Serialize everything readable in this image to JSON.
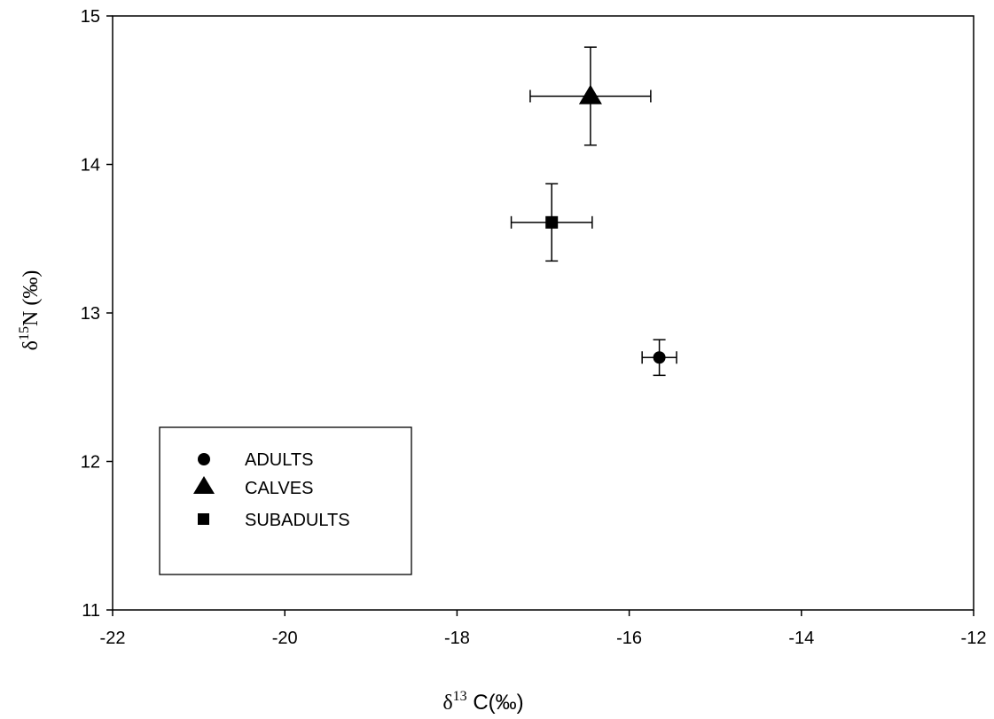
{
  "chart_data": {
    "type": "scatter",
    "xlabel": {
      "symbol": "δ",
      "sup": "13",
      "text": " C(‰)"
    },
    "ylabel": {
      "symbol": "δ",
      "sup": "15",
      "text": "N (‰)"
    },
    "xlim": [
      -22,
      -12
    ],
    "ylim": [
      11,
      15
    ],
    "xticks": [
      -22,
      -20,
      -18,
      -16,
      -14,
      -12
    ],
    "yticks": [
      11,
      12,
      13,
      14,
      15
    ],
    "grid": false,
    "legend_position": "bottom-left",
    "series": [
      {
        "name": "ADULTS",
        "marker": "circle",
        "x": -15.65,
        "y": 12.7,
        "x_err": 0.2,
        "y_err": 0.12
      },
      {
        "name": "CALVES",
        "marker": "triangle",
        "x": -16.45,
        "y": 14.46,
        "x_err": 0.7,
        "y_err": 0.33
      },
      {
        "name": "SUBADULTS",
        "marker": "square",
        "x": -16.9,
        "y": 13.61,
        "x_err": 0.47,
        "y_err": 0.26
      }
    ],
    "colors": {
      "marker": "#000000",
      "axis": "#000000"
    }
  }
}
